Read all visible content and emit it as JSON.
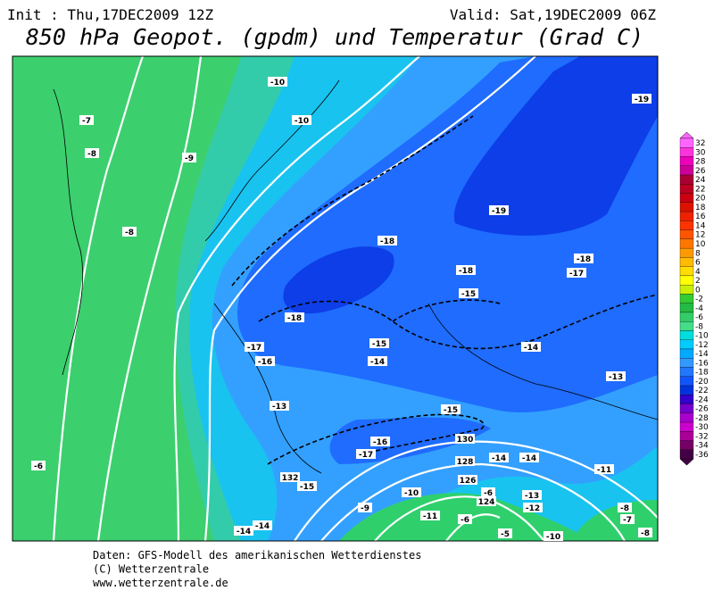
{
  "header": {
    "init": "Init : Thu,17DEC2009 12Z",
    "valid": "Valid: Sat,19DEC2009 06Z",
    "title": "850 hPa Geopot. (gpdm) und Temperatur (Grad C)"
  },
  "map": {
    "labels": [
      "-10",
      "-10",
      "-7",
      "-8",
      "-9",
      "-8",
      "-19",
      "-19",
      "-18",
      "-18",
      "-18",
      "-17",
      "-15",
      "-18",
      "-17",
      "-15",
      "-14",
      "-16",
      "-14",
      "-13",
      "-13",
      "-15",
      "-16",
      "-17",
      "-14",
      "-14",
      "-11",
      "-6",
      "-15",
      "-10",
      "-13",
      "-6",
      "-12",
      "-9",
      "-11",
      "-6",
      "-5",
      "-8",
      "-7",
      "-10",
      "-8",
      "-14",
      "-14",
      "130",
      "128",
      "132",
      "126",
      "124"
    ]
  },
  "colorbar": {
    "labels": [
      32,
      30,
      28,
      26,
      24,
      22,
      20,
      18,
      16,
      14,
      12,
      10,
      8,
      6,
      4,
      2,
      0,
      -2,
      -4,
      -6,
      -8,
      -10,
      -12,
      -14,
      -16,
      -18,
      -20,
      -22,
      -24,
      -26,
      -28,
      -30,
      -32,
      -34,
      -36
    ]
  },
  "footer": {
    "lines": [
      "Daten: GFS-Modell des amerikanischen Wetterdienstes",
      "(C) Wetterzentrale",
      "www.wetterzentrale.de"
    ]
  }
}
